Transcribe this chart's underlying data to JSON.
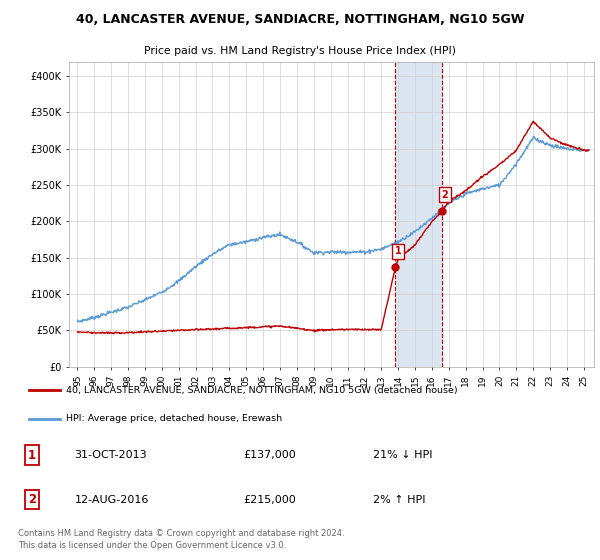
{
  "title": "40, LANCASTER AVENUE, SANDIACRE, NOTTINGHAM, NG10 5GW",
  "subtitle": "Price paid vs. HM Land Registry's House Price Index (HPI)",
  "ylabel_ticks": [
    "£0",
    "£50K",
    "£100K",
    "£150K",
    "£200K",
    "£250K",
    "£300K",
    "£350K",
    "£400K"
  ],
  "ytick_values": [
    0,
    50000,
    100000,
    150000,
    200000,
    250000,
    300000,
    350000,
    400000
  ],
  "ylim": [
    0,
    420000
  ],
  "hpi_color": "#5b9bd5",
  "price_color": "#c00000",
  "highlight_fill": "#dce6f1",
  "marker1_x": 2013.83,
  "marker1_y": 137000,
  "marker2_x": 2016.62,
  "marker2_y": 215000,
  "vline1_x": 2013.83,
  "vline2_x": 2016.62,
  "legend_house_label": "40, LANCASTER AVENUE, SANDIACRE, NOTTINGHAM, NG10 5GW (detached house)",
  "legend_hpi_label": "HPI: Average price, detached house, Erewash",
  "annotation1_num": "1",
  "annotation1_date": "31-OCT-2013",
  "annotation1_price": "£137,000",
  "annotation1_hpi": "21% ↓ HPI",
  "annotation2_num": "2",
  "annotation2_date": "12-AUG-2016",
  "annotation2_price": "£215,000",
  "annotation2_hpi": "2% ↑ HPI",
  "footer": "Contains HM Land Registry data © Crown copyright and database right 2024.\nThis data is licensed under the Open Government Licence v3.0.",
  "xtick_years": [
    1995,
    1996,
    1997,
    1998,
    1999,
    2000,
    2001,
    2002,
    2003,
    2004,
    2005,
    2006,
    2007,
    2008,
    2009,
    2010,
    2011,
    2012,
    2013,
    2014,
    2015,
    2016,
    2017,
    2018,
    2019,
    2020,
    2021,
    2022,
    2023,
    2024,
    2025
  ],
  "hpi_years": [
    1995,
    1996,
    1997,
    1998,
    1999,
    2000,
    2001,
    2002,
    2003,
    2004,
    2005,
    2006,
    2007,
    2008,
    2009,
    2010,
    2011,
    2012,
    2013,
    2014,
    2015,
    2016,
    2017,
    2018,
    2019,
    2020,
    2021,
    2022,
    2023,
    2024,
    2025
  ],
  "hpi_prices": [
    62000,
    68000,
    75000,
    82000,
    92000,
    103000,
    118000,
    138000,
    155000,
    168000,
    172000,
    178000,
    182000,
    172000,
    157000,
    158000,
    158000,
    158000,
    162000,
    172000,
    186000,
    205000,
    225000,
    238000,
    245000,
    250000,
    280000,
    315000,
    305000,
    300000,
    298000
  ],
  "price_years": [
    1995,
    1996,
    1997,
    1998,
    1999,
    2000,
    2001,
    2002,
    2003,
    2004,
    2005,
    2006,
    2007,
    2008,
    2009,
    2010,
    2011,
    2012,
    2013,
    2013.83,
    2014,
    2015,
    2016,
    2016.62,
    2017,
    2018,
    2019,
    2020,
    2021,
    2022,
    2023,
    2024,
    2025
  ],
  "price_prices": [
    48000,
    47000,
    46500,
    47000,
    48000,
    49000,
    50000,
    51000,
    52000,
    53000,
    54000,
    55000,
    56000,
    53000,
    50000,
    51000,
    51500,
    51000,
    51500,
    137000,
    148000,
    168000,
    200000,
    215000,
    228000,
    242000,
    262000,
    278000,
    298000,
    338000,
    315000,
    305000,
    298000
  ]
}
